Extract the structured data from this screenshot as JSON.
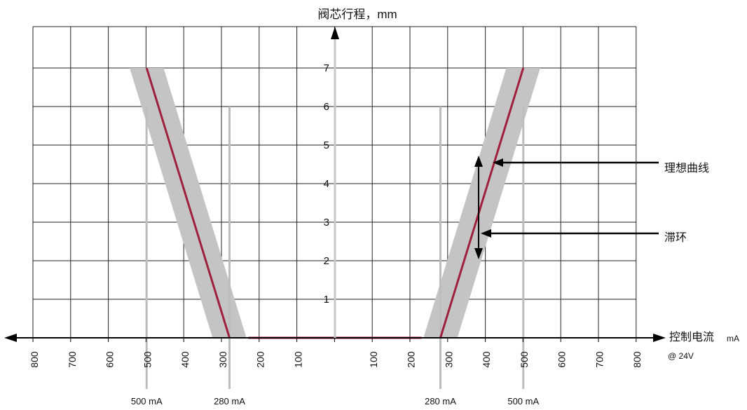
{
  "chart_data": {
    "type": "line",
    "title": "",
    "ylabel": "阀芯行程，mm",
    "xlabel": "控制电流",
    "xlabel_unit": "mA",
    "xlabel_note": "@ 24V",
    "x_tick_labels": [
      "800",
      "700",
      "600",
      "500",
      "400",
      "300",
      "200",
      "100",
      "100",
      "200",
      "300",
      "400",
      "500",
      "600",
      "700",
      "800"
    ],
    "y_tick_labels": [
      "1",
      "2",
      "3",
      "4",
      "5",
      "6",
      "7"
    ],
    "xlim": [
      -800,
      800
    ],
    "ylim": [
      0,
      7
    ],
    "grid": true,
    "series": [
      {
        "name": "理想曲线",
        "color": "#a0203c",
        "segments": [
          [
            {
              "x": -500,
              "y": 7
            },
            {
              "x": -280,
              "y": 0
            }
          ],
          [
            {
              "x": -230,
              "y": 0
            },
            {
              "x": 230,
              "y": 0
            }
          ],
          [
            {
              "x": 280,
              "y": 0
            },
            {
              "x": 500,
              "y": 7
            }
          ]
        ]
      },
      {
        "name": "滞环",
        "color": "#c4c4c4",
        "band_width_mA": 60,
        "segments": [
          [
            {
              "x": -500,
              "y": 7
            },
            {
              "x": -280,
              "y": 0
            }
          ],
          [
            {
              "x": 280,
              "y": 0
            },
            {
              "x": 500,
              "y": 7
            }
          ]
        ]
      }
    ],
    "reference_currents": [
      {
        "x": -500,
        "label": "500 mA"
      },
      {
        "x": -280,
        "label": "280 mA"
      },
      {
        "x": 280,
        "label": "280 mA"
      },
      {
        "x": 500,
        "label": "500 mA"
      }
    ],
    "annotations": [
      {
        "text": "理想曲线",
        "points_to": "ideal-curve"
      },
      {
        "text": "滞环",
        "points_to": "hysteresis-band"
      }
    ]
  }
}
